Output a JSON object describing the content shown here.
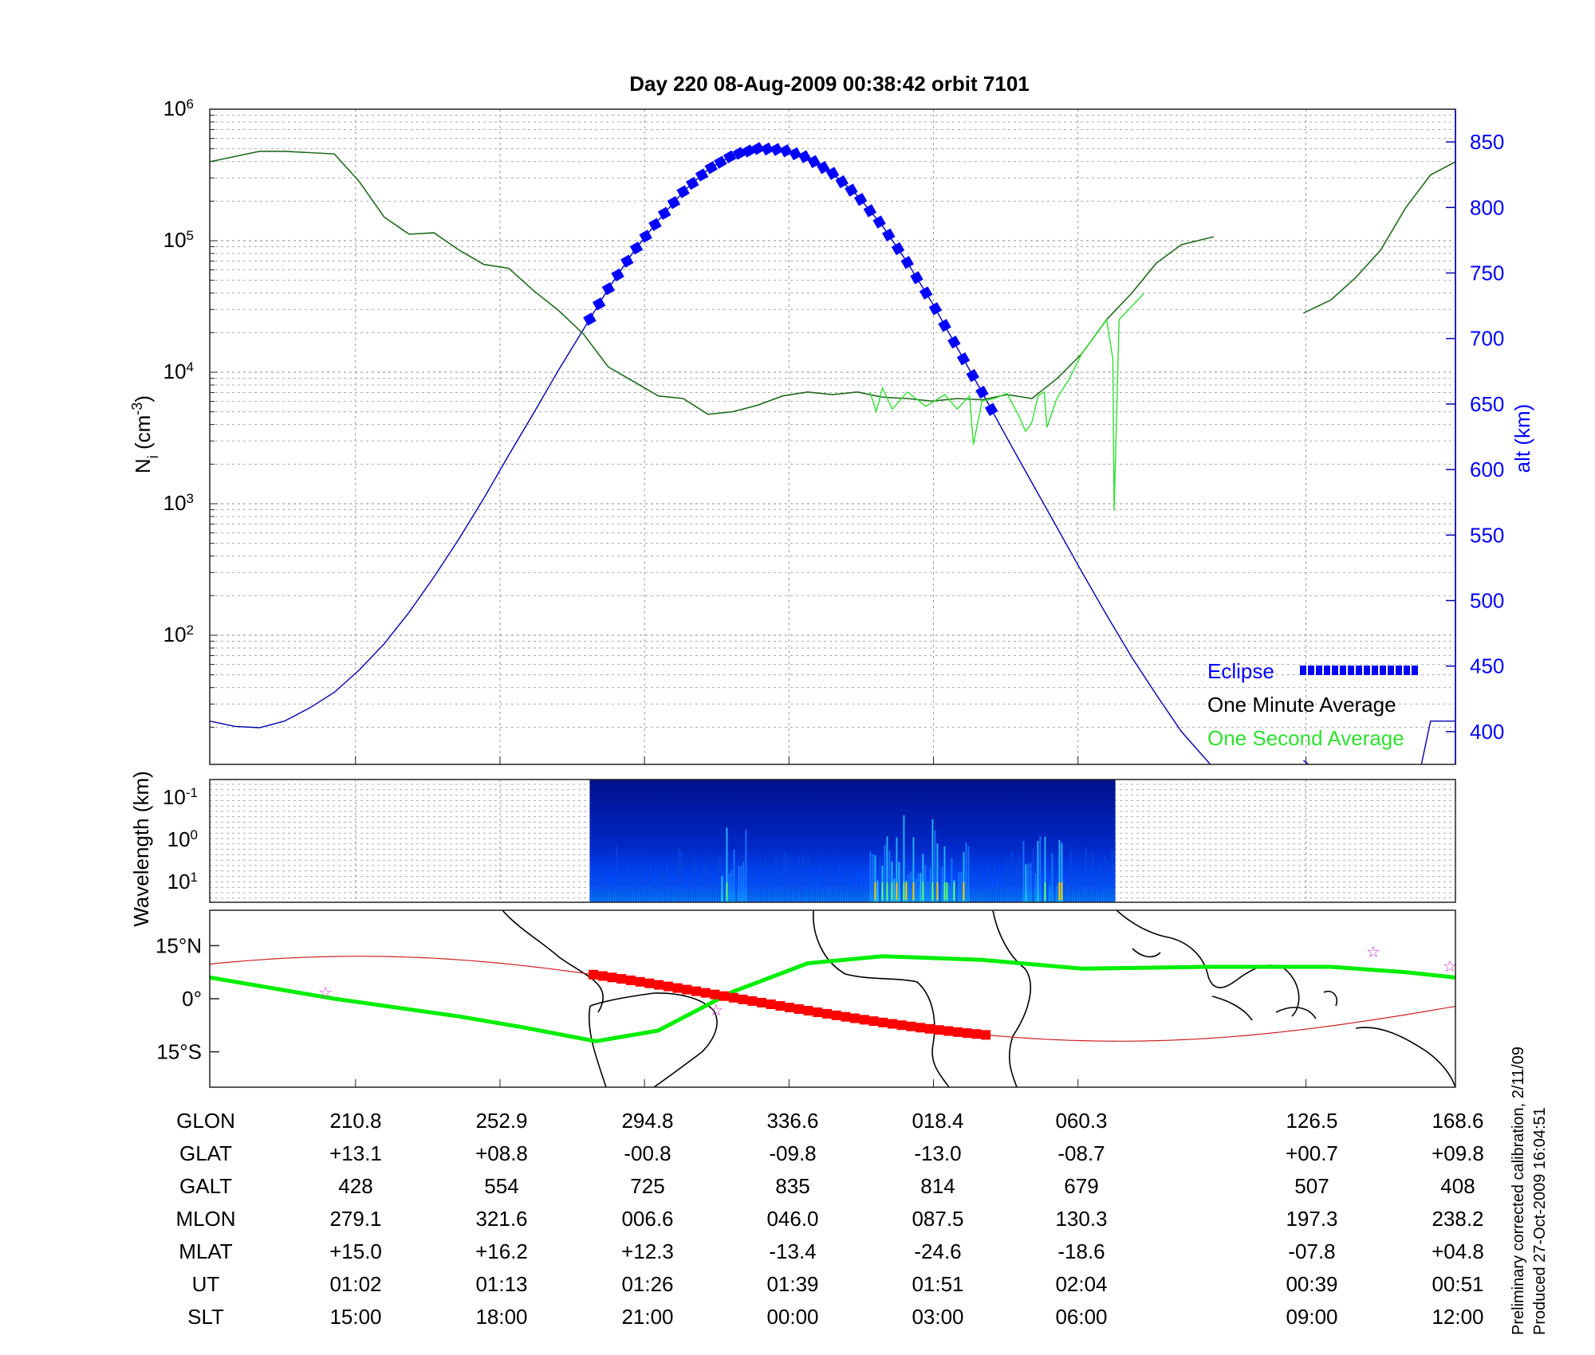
{
  "title": "Day 220  08-Aug-2009 00:38:42   orbit 7101",
  "colors": {
    "density_avg": "#1f6b1f",
    "density_1s": "#2fe02f",
    "altitude": "#0000b0",
    "eclipse": "#0000ff",
    "track": "#ff0000",
    "equator": "#00ee00",
    "stars": "#cc33cc"
  },
  "chart_data": [
    {
      "type": "line",
      "panel": "density-altitude",
      "y_left_label_main": "N",
      "y_left_label_sub": "i",
      "y_left_label_unit": " (cm",
      "y_left_label_exp": "-3",
      "y_left_label_close": ")",
      "y_left_scale": "log",
      "y_left_ticks": [
        {
          "base": "10",
          "exp": "2"
        },
        {
          "base": "10",
          "exp": "3"
        },
        {
          "base": "10",
          "exp": "4"
        },
        {
          "base": "10",
          "exp": "5"
        },
        {
          "base": "10",
          "exp": "6"
        }
      ],
      "y_right_label": "alt (km)",
      "y_right_ticks": [
        "400",
        "450",
        "500",
        "550",
        "600",
        "650",
        "700",
        "750",
        "800",
        "850"
      ],
      "ylim_right": [
        375,
        875
      ],
      "grid": true,
      "legend_position": "bottom-right",
      "legend": {
        "eclipse": "Eclipse",
        "avg": "One Minute Average",
        "one_sec": "One Second Average"
      },
      "series": [
        {
          "name": "One Minute Average",
          "x": [
            0,
            0.02,
            0.04,
            0.06,
            0.08,
            0.1,
            0.12,
            0.14,
            0.16,
            0.18,
            0.2,
            0.22,
            0.24,
            0.26,
            0.28,
            0.3,
            0.32,
            0.34,
            0.36,
            0.38,
            0.4,
            0.42,
            0.44,
            0.46,
            0.48,
            0.5,
            0.52,
            0.54,
            0.56,
            0.58,
            0.6,
            0.62,
            0.64,
            0.66,
            0.68,
            0.7,
            0.72,
            0.74,
            0.76,
            0.78,
            0.806,
            0.878,
            0.9,
            0.92,
            0.94,
            0.96,
            0.98,
            1.0
          ],
          "log10_y": [
            5.6,
            5.64,
            5.68,
            5.68,
            5.67,
            5.66,
            5.45,
            5.18,
            5.05,
            5.06,
            4.93,
            4.82,
            4.79,
            4.62,
            4.47,
            4.29,
            4.04,
            3.93,
            3.82,
            3.8,
            3.68,
            3.7,
            3.75,
            3.82,
            3.85,
            3.83,
            3.85,
            3.81,
            3.8,
            3.78,
            3.8,
            3.79,
            3.83,
            3.8,
            3.95,
            4.14,
            4.4,
            4.6,
            4.83,
            4.97,
            5.03,
            4.45,
            4.55,
            4.72,
            4.93,
            5.25,
            5.5,
            5.6
          ]
        },
        {
          "name": "One Second Average",
          "x": [
            0.53,
            0.535,
            0.54,
            0.548,
            0.56,
            0.575,
            0.59,
            0.6,
            0.61,
            0.613,
            0.62,
            0.63,
            0.64,
            0.645,
            0.65,
            0.655,
            0.66,
            0.665,
            0.67,
            0.672,
            0.68,
            0.69,
            0.7,
            0.72,
            0.725,
            0.726,
            0.73,
            0.75
          ],
          "log10_y": [
            3.85,
            3.7,
            3.88,
            3.72,
            3.85,
            3.74,
            3.83,
            3.72,
            3.82,
            3.45,
            3.78,
            3.8,
            3.84,
            3.75,
            3.66,
            3.55,
            3.62,
            3.82,
            3.85,
            3.58,
            3.8,
            3.95,
            4.14,
            4.4,
            4.1,
            2.95,
            4.4,
            4.6
          ]
        },
        {
          "name": "alt (km)",
          "x": [
            0,
            0.02,
            0.04,
            0.06,
            0.08,
            0.1,
            0.12,
            0.14,
            0.16,
            0.18,
            0.2,
            0.22,
            0.24,
            0.26,
            0.28,
            0.3,
            0.32,
            0.34,
            0.36,
            0.38,
            0.4,
            0.42,
            0.44,
            0.46,
            0.48,
            0.5,
            0.52,
            0.54,
            0.56,
            0.58,
            0.6,
            0.62,
            0.64,
            0.66,
            0.68,
            0.7,
            0.72,
            0.74,
            0.76,
            0.78,
            0.806,
            0.878,
            0.9,
            0.92,
            0.94,
            0.96,
            0.98,
            1.0
          ],
          "y": [
            408,
            404,
            403,
            408,
            418,
            430,
            447,
            467,
            491,
            518,
            547,
            578,
            611,
            643,
            676,
            707,
            738,
            766,
            790,
            812,
            829,
            840,
            845,
            844,
            838,
            826,
            809,
            786,
            758,
            727,
            693,
            659,
            624,
            590,
            556,
            522,
            489,
            457,
            428,
            400,
            372,
            378,
            362,
            348,
            332,
            318,
            408,
            408
          ]
        }
      ],
      "eclipse": {
        "x_start": 0.305,
        "x_end": 0.63
      }
    },
    {
      "type": "heatmap",
      "panel": "spectrogram",
      "ylabel": "Wavelength (km)",
      "y_ticks": [
        {
          "base": "10",
          "exp": "-1"
        },
        {
          "base": "10",
          "exp": "0"
        },
        {
          "base": "10",
          "exp": "1"
        }
      ],
      "x_start": 0.305,
      "x_end": 0.727,
      "grid": true
    },
    {
      "type": "map",
      "panel": "ground-track",
      "y_ticks": [
        "15°N",
        "0°",
        "15°S"
      ],
      "ylim": [
        -25,
        25
      ]
    },
    {
      "type": "table",
      "panel": "orbit-table",
      "rows": [
        {
          "label": "GLON",
          "values": [
            "210.8",
            "252.9",
            "294.8",
            "336.6",
            "018.4",
            "060.3",
            "126.5",
            "168.6"
          ]
        },
        {
          "label": "GLAT",
          "values": [
            "+13.1",
            "+08.8",
            "-00.8",
            "-09.8",
            "-13.0",
            "-08.7",
            "+00.7",
            "+09.8"
          ]
        },
        {
          "label": "GALT",
          "values": [
            "428",
            "554",
            "725",
            "835",
            "814",
            "679",
            "507",
            "408"
          ]
        },
        {
          "label": "MLON",
          "values": [
            "279.1",
            "321.6",
            "006.6",
            "046.0",
            "087.5",
            "130.3",
            "197.3",
            "238.2"
          ]
        },
        {
          "label": "MLAT",
          "values": [
            "+15.0",
            "+16.2",
            "+12.3",
            "-13.4",
            "-24.6",
            "-18.6",
            "-07.8",
            "+04.8"
          ]
        },
        {
          "label": "UT",
          "values": [
            "01:02",
            "01:13",
            "01:26",
            "01:39",
            "01:51",
            "02:04",
            "00:39",
            "00:51"
          ]
        },
        {
          "label": "SLT",
          "values": [
            "15:00",
            "18:00",
            "21:00",
            "00:00",
            "03:00",
            "06:00",
            "09:00",
            "12:00"
          ]
        }
      ]
    }
  ],
  "footnote": {
    "line1": "Preliminary corrected calibration, 2/11/09",
    "line2": "Produced 27-Oct-2009 16:04:51"
  }
}
